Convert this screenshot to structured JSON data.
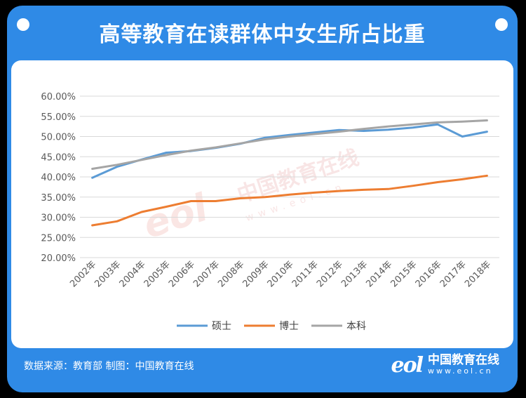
{
  "header": {
    "title": "高等教育在读群体中女生所占比重"
  },
  "footer": {
    "source": "数据来源：教育部  制图：中国教育在线"
  },
  "logo": {
    "mark": "eol",
    "name": "中国教育在线",
    "url": "www.eol.cn"
  },
  "watermark": {
    "mark": "eol",
    "name": "中国教育在线",
    "url": "www.eol.cn"
  },
  "colors": {
    "background": "#2f8ae6",
    "master": "#5b9bd5",
    "doctor": "#ed7d31",
    "undergrad": "#a5a5a5"
  },
  "chart_data": {
    "type": "line",
    "title": "",
    "xlabel": "",
    "ylabel": "",
    "categories": [
      "2002年",
      "2003年",
      "2004年",
      "2005年",
      "2006年",
      "2007年",
      "2008年",
      "2009年",
      "2010年",
      "2011年",
      "2012年",
      "2013年",
      "2014年",
      "2015年",
      "2016年",
      "2017年",
      "2018年"
    ],
    "ylim": [
      20,
      60
    ],
    "yticks": [
      "20.00%",
      "25.00%",
      "30.00%",
      "35.00%",
      "40.00%",
      "45.00%",
      "50.00%",
      "55.00%",
      "60.00%"
    ],
    "grid": true,
    "legend_position": "bottom",
    "series": [
      {
        "name": "硕士",
        "color": "#5b9bd5",
        "values": [
          39.8,
          42.5,
          44.3,
          46.0,
          46.4,
          47.2,
          48.2,
          49.7,
          50.4,
          51.0,
          51.6,
          51.4,
          51.7,
          52.2,
          53.0,
          50.0,
          51.2
        ]
      },
      {
        "name": "博士",
        "color": "#ed7d31",
        "values": [
          28.0,
          29.0,
          31.3,
          32.6,
          34.0,
          34.0,
          34.7,
          35.0,
          35.6,
          36.1,
          36.5,
          36.8,
          37.0,
          37.8,
          38.7,
          39.4,
          40.3
        ]
      },
      {
        "name": "本科",
        "color": "#a5a5a5",
        "values": [
          42.0,
          43.0,
          44.2,
          45.4,
          46.5,
          47.3,
          48.3,
          49.3,
          50.0,
          50.6,
          51.2,
          51.9,
          52.5,
          53.0,
          53.5,
          53.7,
          54.0
        ]
      }
    ]
  }
}
